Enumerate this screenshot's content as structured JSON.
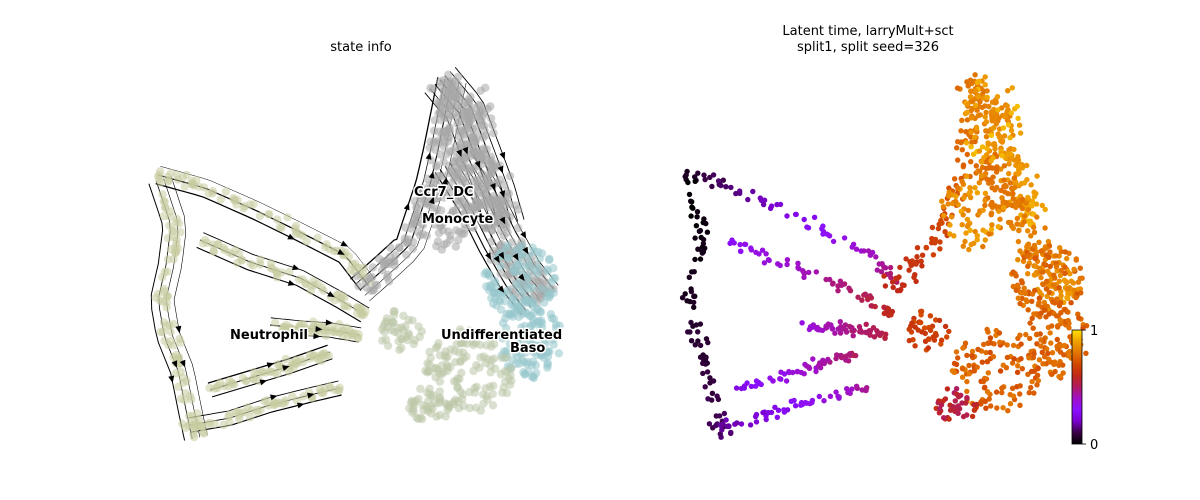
{
  "chart_data": [
    {
      "type": "scatter",
      "subtype": "embedding with velocity streamlines",
      "title": "state info",
      "axes_visible": false,
      "grid": false,
      "legend": "on data",
      "clusters": [
        {
          "name": "Neutrophil",
          "color": "#c8cca0"
        },
        {
          "name": "Ccr7_DC",
          "color": "#a8a8a8"
        },
        {
          "name": "Monocyte",
          "color": "#a8a8a8"
        },
        {
          "name": "Undifferentiated",
          "color": "#bcc6a8"
        },
        {
          "name": "Baso",
          "color": "#96c7cc"
        }
      ],
      "label_texts": [
        "Neutrophil",
        "Ccr7_DC",
        "Monocyte",
        "Undifferentiated",
        "Baso"
      ],
      "streamline_color": "#000000"
    },
    {
      "type": "scatter",
      "subtype": "embedding colored by continuous value",
      "title_lines": [
        "Latent time, larryMult+sct",
        "split1, split seed=326"
      ],
      "axes_visible": false,
      "grid": false,
      "colorbar": {
        "range": [
          0,
          1
        ],
        "tick_labels": [
          "0",
          "1"
        ],
        "colormap": [
          "#000000",
          "#3a0046",
          "#7a00cc",
          "#8a10ff",
          "#a010c8",
          "#b01c60",
          "#c02818",
          "#d24800",
          "#e27400",
          "#f0a000",
          "#ffe000"
        ]
      }
    }
  ]
}
